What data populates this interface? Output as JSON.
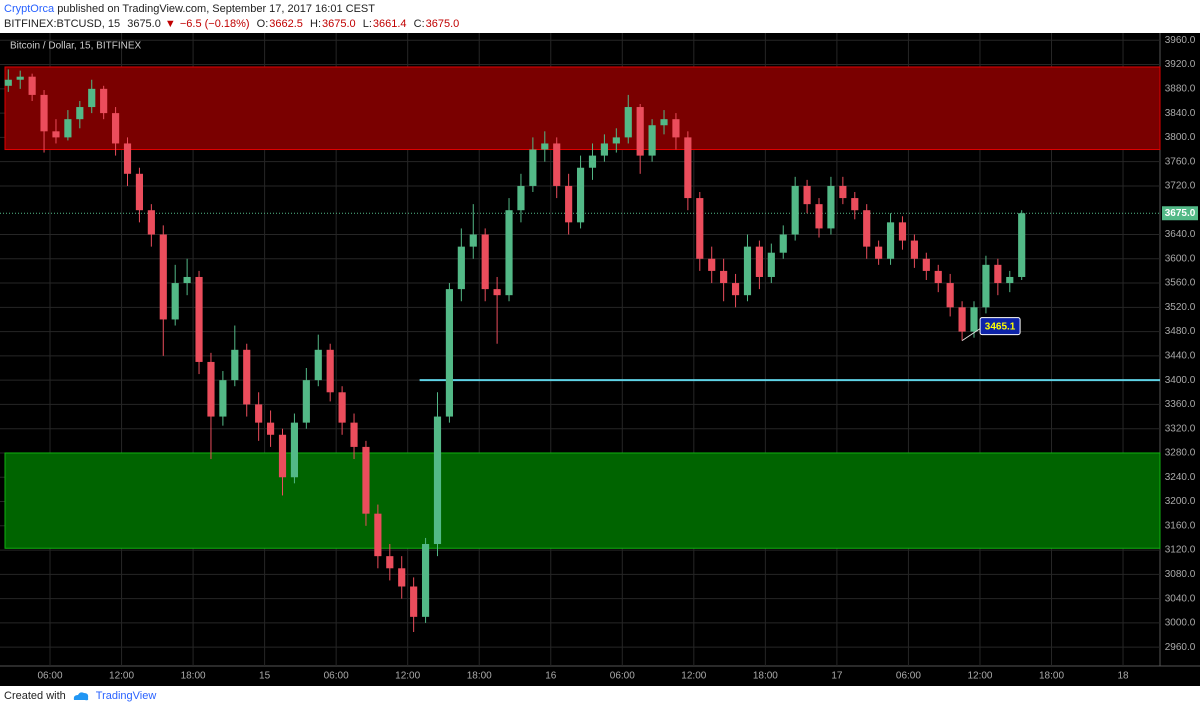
{
  "header": {
    "author": "CryptOrca",
    "published": "published on TradingView.com, September 17, 2017 16:01 CEST",
    "symbol": "BITFINEX:BTCUSD, 15",
    "last": "3675.0",
    "change": "−6.5 (−0.18%)",
    "ohlc": [
      {
        "key": "O:",
        "value": "3662.5"
      },
      {
        "key": "H:",
        "value": "3675.0"
      },
      {
        "key": "L:",
        "value": "3661.4"
      },
      {
        "key": "C:",
        "value": "3675.0"
      }
    ]
  },
  "chart_data": {
    "type": "candlestick",
    "title": "Bitcoin / Dollar, 15, BITFINEX",
    "up_color": "#53b987",
    "down_color": "#eb4d5c",
    "grid": true,
    "xlim": [
      0.225,
      97.1
    ],
    "ylim": [
      2929,
      3972
    ],
    "xticks": [
      {
        "value": 4,
        "label": "06:00"
      },
      {
        "value": 10,
        "label": "12:00"
      },
      {
        "value": 16,
        "label": "18:00"
      },
      {
        "value": 22,
        "label": "15"
      },
      {
        "value": 28,
        "label": "06:00"
      },
      {
        "value": 34,
        "label": "12:00"
      },
      {
        "value": 40,
        "label": "18:00"
      },
      {
        "value": 46,
        "label": "16"
      },
      {
        "value": 52,
        "label": "06:00"
      },
      {
        "value": 58,
        "label": "12:00"
      },
      {
        "value": 64,
        "label": "18:00"
      },
      {
        "value": 70,
        "label": "17"
      },
      {
        "value": 76,
        "label": "06:00"
      },
      {
        "value": 82,
        "label": "12:00"
      },
      {
        "value": 88,
        "label": "18:00"
      },
      {
        "value": 94,
        "label": "18"
      }
    ],
    "yticks": [
      {
        "value": 2960,
        "label": "2960.0"
      },
      {
        "value": 3000,
        "label": "3000.0"
      },
      {
        "value": 3040,
        "label": "3040.0"
      },
      {
        "value": 3080,
        "label": "3080.0"
      },
      {
        "value": 3120,
        "label": "3120.0"
      },
      {
        "value": 3160,
        "label": "3160.0"
      },
      {
        "value": 3200,
        "label": "3200.0"
      },
      {
        "value": 3240,
        "label": "3240.0"
      },
      {
        "value": 3280,
        "label": "3280.0"
      },
      {
        "value": 3320,
        "label": "3320.0"
      },
      {
        "value": 3360,
        "label": "3360.0"
      },
      {
        "value": 3400,
        "label": "3400.0"
      },
      {
        "value": 3440,
        "label": "3440.0"
      },
      {
        "value": 3480,
        "label": "3480.0"
      },
      {
        "value": 3520,
        "label": "3520.0"
      },
      {
        "value": 3560,
        "label": "3560.0"
      },
      {
        "value": 3600,
        "label": "3600.0"
      },
      {
        "value": 3640,
        "label": "3640.0"
      },
      {
        "value": 3720,
        "label": "3720.0"
      },
      {
        "value": 3760,
        "label": "3760.0"
      },
      {
        "value": 3800,
        "label": "3800.0"
      },
      {
        "value": 3840,
        "label": "3840.0"
      },
      {
        "value": 3880,
        "label": "3880.0"
      },
      {
        "value": 3920,
        "label": "3920.0"
      },
      {
        "value": 3960,
        "label": "3960.0"
      }
    ],
    "zones": [
      {
        "from": 3780,
        "to": 3916,
        "color": "#7a0000",
        "border": "#e00000"
      },
      {
        "from": 3123,
        "to": 3280,
        "color": "#006400",
        "border": "#10b010"
      }
    ],
    "hline": {
      "value": 3400,
      "from_x": 35,
      "color": "#5fd3e6"
    },
    "last_price": {
      "value": 3675,
      "label": "3675.0"
    },
    "annotation": {
      "label": "3465.1",
      "value": 3465.1,
      "x": 80.5
    },
    "candles": [
      [
        3885,
        3912,
        3875,
        3895
      ],
      [
        3895,
        3910,
        3880,
        3900
      ],
      [
        3900,
        3905,
        3860,
        3870
      ],
      [
        3870,
        3878,
        3775,
        3810
      ],
      [
        3810,
        3830,
        3790,
        3800
      ],
      [
        3800,
        3845,
        3795,
        3830
      ],
      [
        3830,
        3860,
        3815,
        3850
      ],
      [
        3850,
        3895,
        3840,
        3880
      ],
      [
        3880,
        3885,
        3830,
        3840
      ],
      [
        3840,
        3850,
        3770,
        3790
      ],
      [
        3790,
        3800,
        3720,
        3740
      ],
      [
        3740,
        3750,
        3660,
        3680
      ],
      [
        3680,
        3690,
        3620,
        3640
      ],
      [
        3640,
        3655,
        3440,
        3500
      ],
      [
        3500,
        3590,
        3490,
        3560
      ],
      [
        3560,
        3600,
        3540,
        3570
      ],
      [
        3570,
        3580,
        3410,
        3430
      ],
      [
        3430,
        3445,
        3270,
        3340
      ],
      [
        3340,
        3415,
        3325,
        3400
      ],
      [
        3400,
        3490,
        3390,
        3450
      ],
      [
        3450,
        3460,
        3340,
        3360
      ],
      [
        3360,
        3380,
        3300,
        3330
      ],
      [
        3330,
        3350,
        3290,
        3310
      ],
      [
        3310,
        3320,
        3210,
        3240
      ],
      [
        3240,
        3345,
        3230,
        3330
      ],
      [
        3330,
        3420,
        3320,
        3400
      ],
      [
        3400,
        3475,
        3390,
        3450
      ],
      [
        3450,
        3460,
        3365,
        3380
      ],
      [
        3380,
        3390,
        3310,
        3330
      ],
      [
        3330,
        3345,
        3270,
        3290
      ],
      [
        3290,
        3300,
        3160,
        3180
      ],
      [
        3180,
        3195,
        3090,
        3110
      ],
      [
        3110,
        3130,
        3070,
        3090
      ],
      [
        3090,
        3110,
        3040,
        3060
      ],
      [
        3060,
        3075,
        2985,
        3010
      ],
      [
        3010,
        3140,
        3000,
        3130
      ],
      [
        3130,
        3380,
        3110,
        3340
      ],
      [
        3340,
        3560,
        3330,
        3550
      ],
      [
        3550,
        3650,
        3530,
        3620
      ],
      [
        3620,
        3690,
        3600,
        3640
      ],
      [
        3640,
        3650,
        3530,
        3550
      ],
      [
        3550,
        3570,
        3460,
        3540
      ],
      [
        3540,
        3700,
        3530,
        3680
      ],
      [
        3680,
        3740,
        3660,
        3720
      ],
      [
        3720,
        3800,
        3710,
        3780
      ],
      [
        3780,
        3810,
        3760,
        3790
      ],
      [
        3790,
        3800,
        3700,
        3720
      ],
      [
        3720,
        3740,
        3640,
        3660
      ],
      [
        3660,
        3770,
        3650,
        3750
      ],
      [
        3750,
        3790,
        3730,
        3770
      ],
      [
        3770,
        3805,
        3760,
        3790
      ],
      [
        3790,
        3815,
        3775,
        3800
      ],
      [
        3800,
        3870,
        3790,
        3850
      ],
      [
        3850,
        3855,
        3740,
        3770
      ],
      [
        3770,
        3830,
        3760,
        3820
      ],
      [
        3820,
        3845,
        3805,
        3830
      ],
      [
        3830,
        3840,
        3780,
        3800
      ],
      [
        3800,
        3810,
        3680,
        3700
      ],
      [
        3700,
        3710,
        3580,
        3600
      ],
      [
        3600,
        3620,
        3560,
        3580
      ],
      [
        3580,
        3600,
        3530,
        3560
      ],
      [
        3560,
        3575,
        3520,
        3540
      ],
      [
        3540,
        3640,
        3530,
        3620
      ],
      [
        3620,
        3630,
        3550,
        3570
      ],
      [
        3570,
        3625,
        3560,
        3610
      ],
      [
        3610,
        3655,
        3600,
        3640
      ],
      [
        3640,
        3735,
        3630,
        3720
      ],
      [
        3720,
        3730,
        3675,
        3690
      ],
      [
        3690,
        3700,
        3635,
        3650
      ],
      [
        3650,
        3735,
        3640,
        3720
      ],
      [
        3720,
        3735,
        3690,
        3700
      ],
      [
        3700,
        3710,
        3665,
        3680
      ],
      [
        3680,
        3690,
        3600,
        3620
      ],
      [
        3620,
        3630,
        3590,
        3600
      ],
      [
        3600,
        3675,
        3590,
        3660
      ],
      [
        3660,
        3670,
        3615,
        3630
      ],
      [
        3630,
        3640,
        3585,
        3600
      ],
      [
        3600,
        3610,
        3565,
        3580
      ],
      [
        3580,
        3590,
        3545,
        3560
      ],
      [
        3560,
        3575,
        3505,
        3520
      ],
      [
        3520,
        3530,
        3465.1,
        3480
      ],
      [
        3480,
        3530,
        3470,
        3520
      ],
      [
        3520,
        3605,
        3510,
        3590
      ],
      [
        3590,
        3600,
        3540,
        3560
      ],
      [
        3560,
        3580,
        3545,
        3570
      ],
      [
        3570,
        3680,
        3565,
        3675
      ]
    ]
  },
  "footer": {
    "created": "Created with",
    "brand": "TradingView"
  }
}
